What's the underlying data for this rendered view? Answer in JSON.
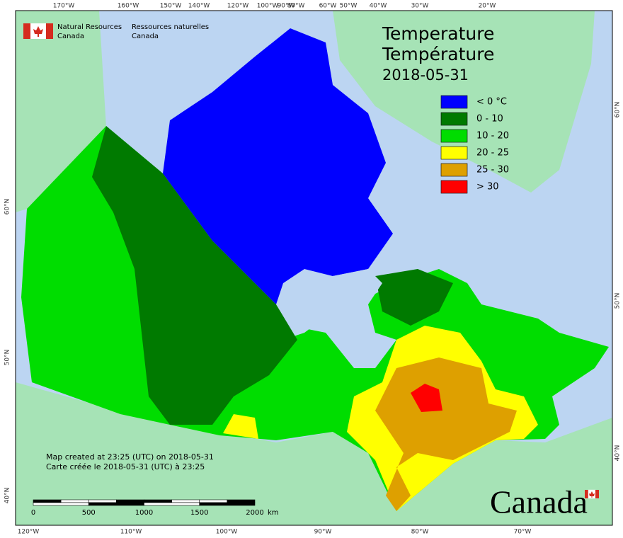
{
  "agency_en": [
    "Natural Resources",
    "Canada"
  ],
  "agency_fr": [
    "Ressources naturelles",
    "Canada"
  ],
  "title": [
    "Temperature",
    "Température"
  ],
  "date": "2018-05-31",
  "legend": [
    {
      "label": "< 0 °C",
      "color": "#0000ff"
    },
    {
      "label": "0 - 10",
      "color": "#007a00"
    },
    {
      "label": "10 - 20",
      "color": "#00dd00"
    },
    {
      "label": "20 - 25",
      "color": "#ffff00"
    },
    {
      "label": "25 - 30",
      "color": "#dea000"
    },
    {
      "label": "> 30",
      "color": "#ff0000"
    }
  ],
  "top_longitudes": [
    "170°W",
    "160°W",
    "150°W",
    "140°W",
    "120°W",
    "100°W",
    "90°W",
    "80°W",
    "60°W",
    "50°W",
    "40°W",
    "30°W",
    "20°W"
  ],
  "bottom_longitudes": [
    "120°W",
    "110°W",
    "100°W",
    "90°W",
    "80°W",
    "70°W"
  ],
  "left_latitudes": [
    "60°N",
    "50°N",
    "40°N"
  ],
  "right_latitudes": [
    "60°N",
    "50°N",
    "40°N"
  ],
  "notes": [
    "Map created at 23:25 (UTC) on 2018-05-31",
    "Carte créée le 2018-05-31 (UTC) à 23:25"
  ],
  "scale": {
    "ticks": [
      "0",
      "500",
      "1000",
      "1500",
      "2000"
    ],
    "unit": "km"
  },
  "wordmark": "Canada"
}
